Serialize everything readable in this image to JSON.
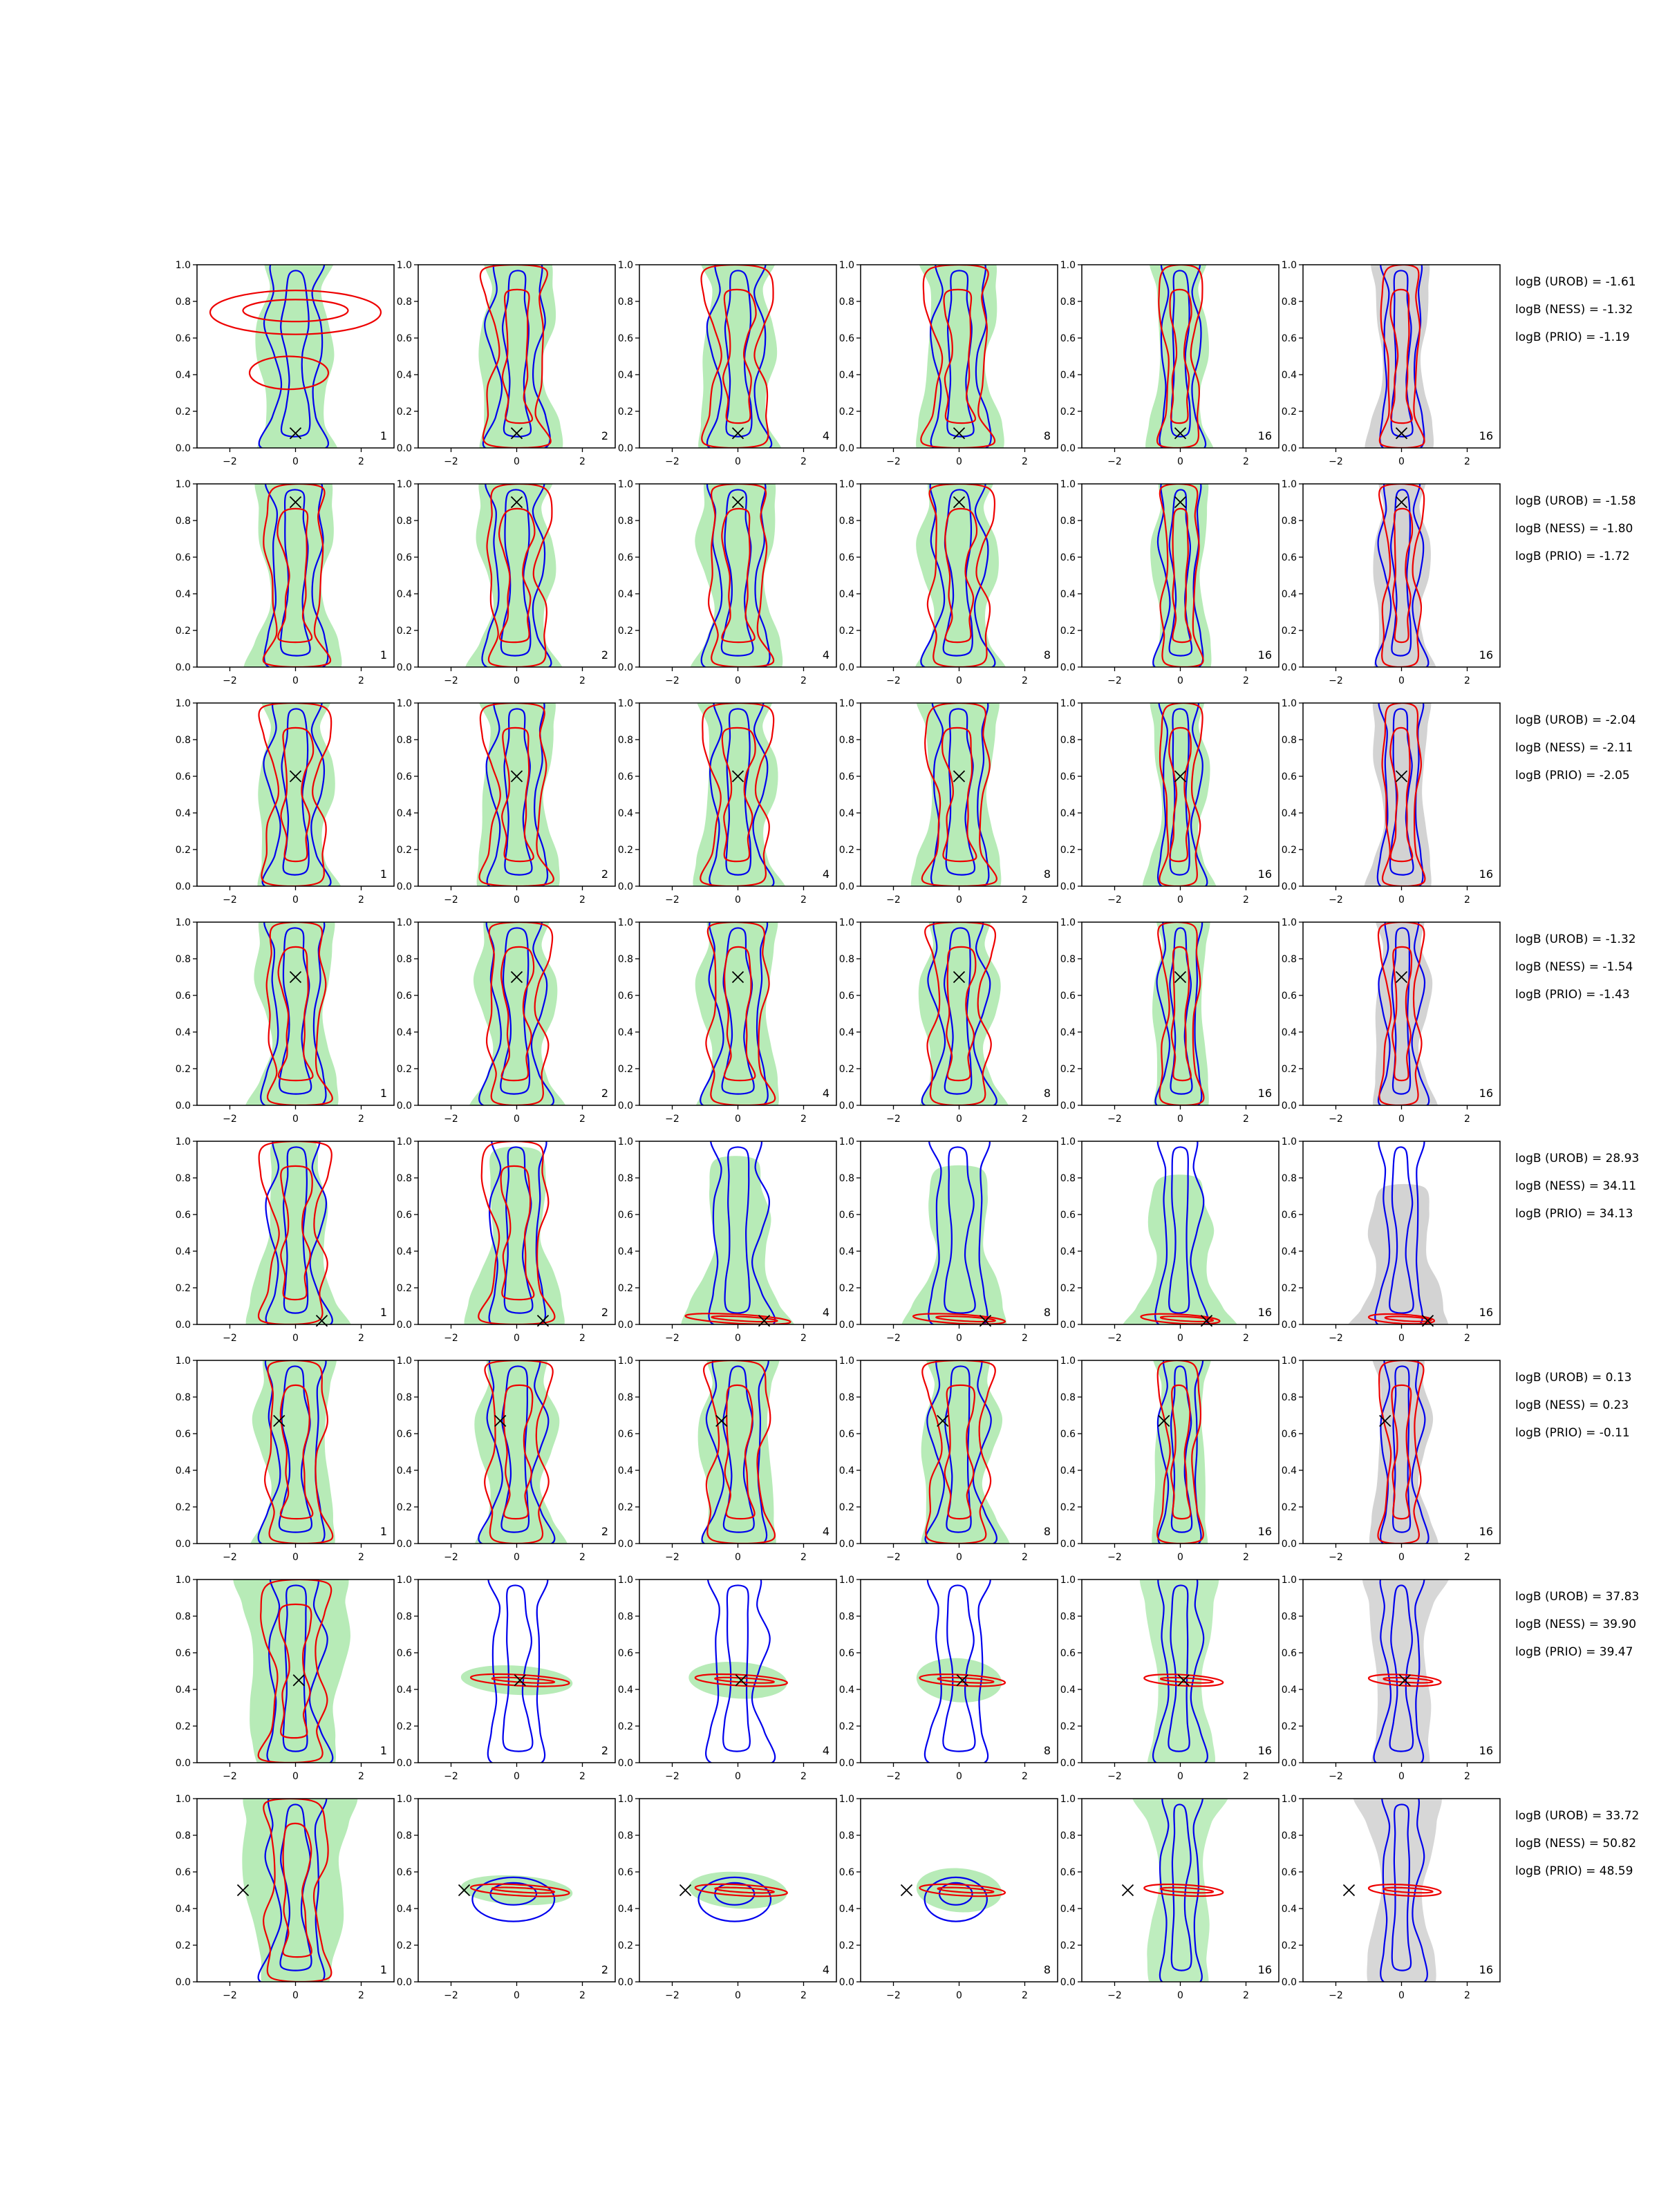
{
  "colors": {
    "green_fill": "#b7ebb7",
    "gray_fill": "#d3d3d3",
    "blue_line": "#0000ee",
    "red_line": "#ee0000",
    "marker": "#000000"
  },
  "chart_data": {
    "type": "contour-grid",
    "rows": 8,
    "cols": 6,
    "xlim": [
      -3,
      3
    ],
    "ylim": [
      0,
      1
    ],
    "x_ticks": [
      "−2",
      "0",
      "2"
    ],
    "y_ticks": [
      "0.0",
      "0.2",
      "0.4",
      "0.6",
      "0.8",
      "1.0"
    ],
    "panel_labels": [
      "1",
      "2",
      "4",
      "8",
      "16",
      "16"
    ],
    "grid": false,
    "legend": "none",
    "series_colors": {
      "filled": "green/gray",
      "contour_a": "blue",
      "contour_b": "red",
      "truth": "black x"
    },
    "truth_markers": [
      {
        "x": 0.0,
        "y": 0.08
      },
      {
        "x": 0.0,
        "y": 0.9
      },
      {
        "x": 0.0,
        "y": 0.6
      },
      {
        "x": 0.0,
        "y": 0.7
      },
      {
        "x": 0.8,
        "y": 0.02
      },
      {
        "x": -0.5,
        "y": 0.67
      },
      {
        "x": 0.1,
        "y": 0.45
      },
      {
        "x": -1.6,
        "y": 0.5
      }
    ],
    "logB": [
      [
        "logB (UROB) = -1.61",
        "logB (NESS) = -1.32",
        "logB (PRIO) = -1.19"
      ],
      [
        "logB (UROB) = -1.58",
        "logB (NESS) = -1.80",
        "logB (PRIO) = -1.72"
      ],
      [
        "logB (UROB) = -2.04",
        "logB (NESS) = -2.11",
        "logB (PRIO) = -2.05"
      ],
      [
        "logB (UROB) = -1.32",
        "logB (NESS) = -1.54",
        "logB (PRIO) = -1.43"
      ],
      [
        "logB (UROB) = 28.93",
        "logB (NESS) = 34.11",
        "logB (PRIO) = 34.13"
      ],
      [
        "logB (UROB) = 0.13",
        "logB (NESS) = 0.23",
        "logB (PRIO) = -0.11"
      ],
      [
        "logB (UROB) = 37.83",
        "logB (NESS) = 39.90",
        "logB (PRIO) = 39.47"
      ],
      [
        "logB (UROB) = 33.72",
        "logB (NESS) = 50.82",
        "logB (PRIO) = 48.59"
      ]
    ]
  }
}
